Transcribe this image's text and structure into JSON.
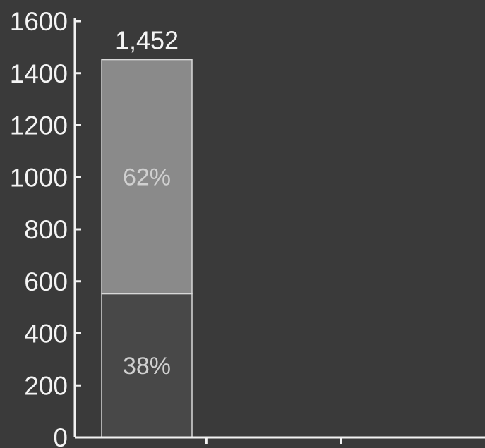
{
  "chart_data": {
    "type": "bar",
    "stacked": true,
    "categories": [
      "",
      "",
      ""
    ],
    "series": [
      {
        "values": [
          552,
          null,
          null
        ],
        "labels": [
          "38%",
          null,
          null
        ]
      },
      {
        "values": [
          900,
          null,
          null
        ],
        "labels": [
          "62%",
          null,
          null
        ]
      }
    ],
    "totals": [
      "1,452",
      null,
      null
    ],
    "ylim": [
      0,
      1600
    ],
    "yticks": [
      0,
      200,
      400,
      600,
      800,
      1000,
      1200,
      1400,
      1600
    ],
    "ytick_labels": [
      "0",
      "200",
      "400",
      "600",
      "800",
      "1000",
      "1200",
      "1400",
      "1600"
    ],
    "title": "",
    "xlabel": "",
    "ylabel": "",
    "grid": false,
    "legend": "none",
    "colors": {
      "background": "#3a3a3a",
      "axis": "#f2f2f2",
      "text": "#f4f4f4",
      "series": [
        "#484848",
        "#8a8a8a"
      ],
      "segment_label": "#d0d0d0"
    }
  }
}
